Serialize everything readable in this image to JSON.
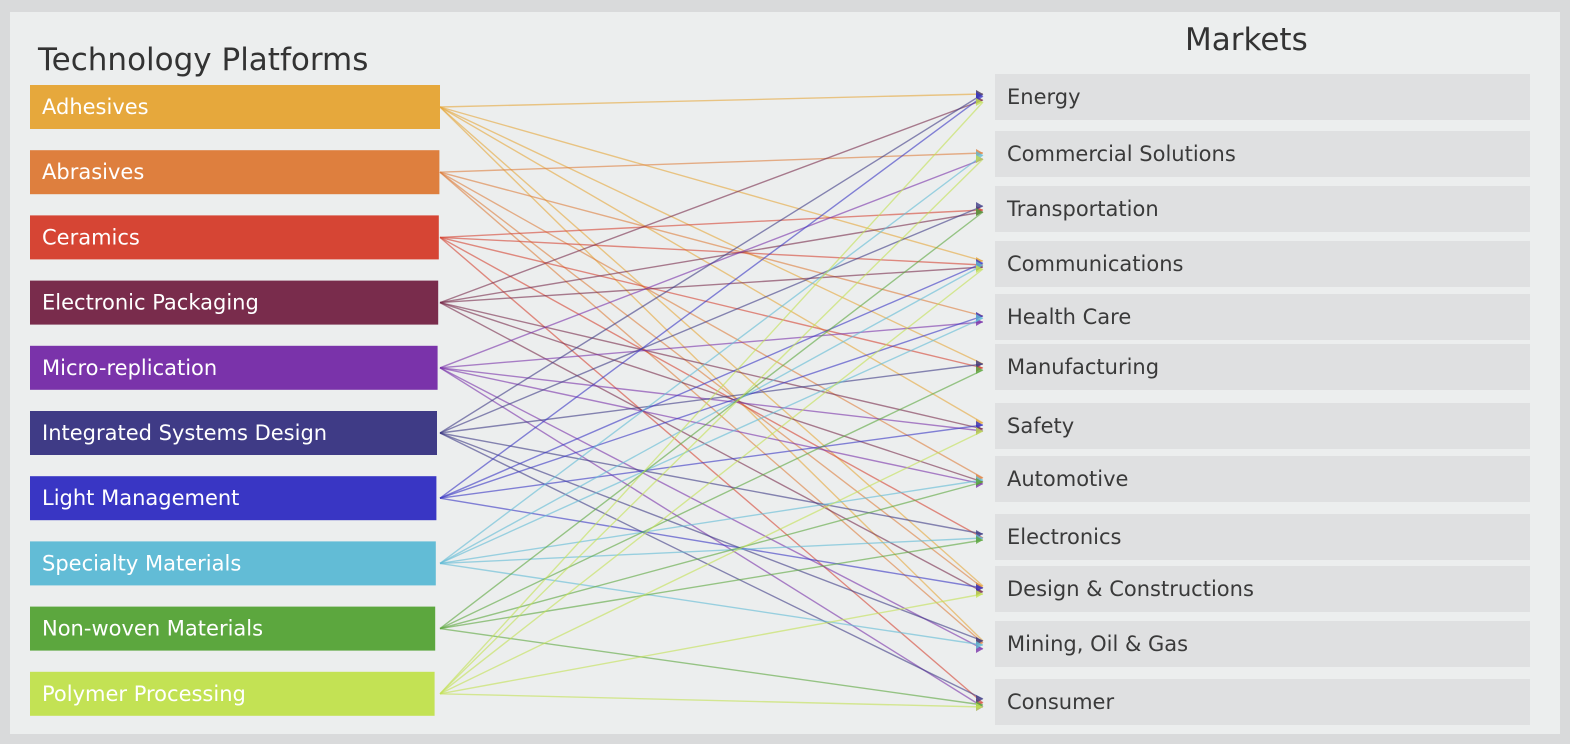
{
  "header": {
    "left_title": "Technology Platforms",
    "right_title": "Markets"
  },
  "platforms": [
    {
      "label": "Adhesives",
      "color": "#e6a83c"
    },
    {
      "label": "Abrasives",
      "color": "#de7f3e"
    },
    {
      "label": "Ceramics",
      "color": "#d64534"
    },
    {
      "label": "Electronic Packaging",
      "color": "#792c4c"
    },
    {
      "label": "Micro-replication",
      "color": "#7a33aa"
    },
    {
      "label": "Integrated Systems Design",
      "color": "#3f3b86"
    },
    {
      "label": "Light Management",
      "color": "#3936c4"
    },
    {
      "label": "Specialty Materials",
      "color": "#62bcd6"
    },
    {
      "label": "Non-woven Materials",
      "color": "#5ca73e"
    },
    {
      "label": "Polymer Processing",
      "color": "#c3e254"
    }
  ],
  "markets": [
    "Energy",
    "Commercial Solutions",
    "Transportation",
    "Communications",
    "Health Care",
    "Manufacturing",
    "Safety",
    "Automotive",
    "Electronics",
    "Design & Constructions",
    "Mining, Oil & Gas",
    "Consumer"
  ]
}
